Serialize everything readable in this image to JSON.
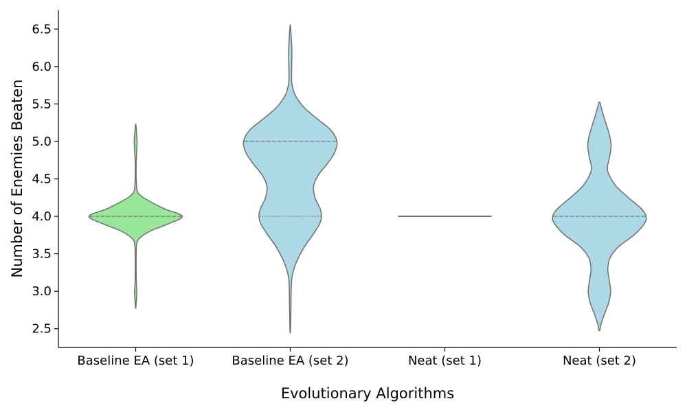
{
  "chart_data": {
    "type": "violin",
    "xlabel": "Evolutionary Algorithms",
    "ylabel": "Number of Enemies Beaten",
    "ylim": [
      2.25,
      6.75
    ],
    "yticks": [
      2.5,
      3.0,
      3.5,
      4.0,
      4.5,
      5.0,
      5.5,
      6.0,
      6.5
    ],
    "ytick_labels": [
      "2.5",
      "3.0",
      "3.5",
      "4.0",
      "4.5",
      "5.0",
      "5.5",
      "6.0",
      "6.5"
    ],
    "grid": false,
    "categories": [
      "Baseline EA (set 1)",
      "Baseline EA (set 2)",
      "Neat (set 1)",
      "Neat (set 2)"
    ],
    "colors": [
      "#98e698",
      "#add8e6",
      "#add8e6",
      "#add8e6"
    ],
    "edge_color": "#6e6e6e",
    "violins": [
      {
        "category": "Baseline EA (set 1)",
        "color": "#98e698",
        "range": [
          2.78,
          5.22
        ],
        "quartile_lines": [
          {
            "y": 4.0,
            "style": "dashed"
          }
        ],
        "density": [
          [
            2.78,
            0.0
          ],
          [
            2.85,
            0.01
          ],
          [
            2.92,
            0.02
          ],
          [
            2.98,
            0.026
          ],
          [
            3.05,
            0.02
          ],
          [
            3.15,
            0.012
          ],
          [
            3.3,
            0.01
          ],
          [
            3.5,
            0.011
          ],
          [
            3.62,
            0.02
          ],
          [
            3.7,
            0.07
          ],
          [
            3.8,
            0.3
          ],
          [
            3.9,
            0.7
          ],
          [
            4.0,
            1.0
          ],
          [
            4.1,
            0.62
          ],
          [
            4.2,
            0.3
          ],
          [
            4.28,
            0.1
          ],
          [
            4.35,
            0.03
          ],
          [
            4.5,
            0.011
          ],
          [
            4.7,
            0.01
          ],
          [
            4.85,
            0.02
          ],
          [
            4.95,
            0.028
          ],
          [
            5.0,
            0.03
          ],
          [
            5.05,
            0.028
          ],
          [
            5.12,
            0.018
          ],
          [
            5.22,
            0.0
          ]
        ]
      },
      {
        "category": "Baseline EA (set 2)",
        "color": "#add8e6",
        "range": [
          2.46,
          6.54
        ],
        "quartile_lines": [
          {
            "y": 4.0,
            "style": "dotted"
          },
          {
            "y": 5.0,
            "style": "dashed"
          }
        ],
        "density": [
          [
            2.46,
            0.0
          ],
          [
            2.6,
            0.01
          ],
          [
            2.8,
            0.015
          ],
          [
            3.0,
            0.02
          ],
          [
            3.2,
            0.04
          ],
          [
            3.4,
            0.14
          ],
          [
            3.6,
            0.31
          ],
          [
            3.75,
            0.48
          ],
          [
            3.9,
            0.63
          ],
          [
            4.0,
            0.67
          ],
          [
            4.1,
            0.64
          ],
          [
            4.25,
            0.53
          ],
          [
            4.4,
            0.5
          ],
          [
            4.55,
            0.6
          ],
          [
            4.7,
            0.79
          ],
          [
            4.85,
            0.95
          ],
          [
            5.0,
            1.0
          ],
          [
            5.15,
            0.87
          ],
          [
            5.3,
            0.58
          ],
          [
            5.45,
            0.3
          ],
          [
            5.6,
            0.12
          ],
          [
            5.7,
            0.06
          ],
          [
            5.8,
            0.03
          ],
          [
            6.0,
            0.03
          ],
          [
            6.2,
            0.035
          ],
          [
            6.4,
            0.02
          ],
          [
            6.54,
            0.0
          ]
        ]
      },
      {
        "category": "Neat (set 1)",
        "color": "#add8e6",
        "range": [
          4.0,
          4.0
        ],
        "constant_value": 4.0,
        "quartile_lines": [],
        "density": []
      },
      {
        "category": "Neat (set 2)",
        "color": "#add8e6",
        "range": [
          2.48,
          5.52
        ],
        "quartile_lines": [
          {
            "y": 4.0,
            "style": "dashed"
          }
        ],
        "density": [
          [
            2.48,
            0.01
          ],
          [
            2.55,
            0.03
          ],
          [
            2.7,
            0.11
          ],
          [
            2.85,
            0.2
          ],
          [
            3.0,
            0.24
          ],
          [
            3.15,
            0.21
          ],
          [
            3.3,
            0.18
          ],
          [
            3.45,
            0.23
          ],
          [
            3.6,
            0.42
          ],
          [
            3.75,
            0.74
          ],
          [
            3.9,
            0.96
          ],
          [
            4.0,
            1.0
          ],
          [
            4.1,
            0.9
          ],
          [
            4.25,
            0.62
          ],
          [
            4.4,
            0.36
          ],
          [
            4.55,
            0.21
          ],
          [
            4.65,
            0.17
          ],
          [
            4.8,
            0.22
          ],
          [
            4.95,
            0.25
          ],
          [
            5.1,
            0.21
          ],
          [
            5.3,
            0.11
          ],
          [
            5.45,
            0.04
          ],
          [
            5.52,
            0.01
          ]
        ]
      }
    ]
  }
}
